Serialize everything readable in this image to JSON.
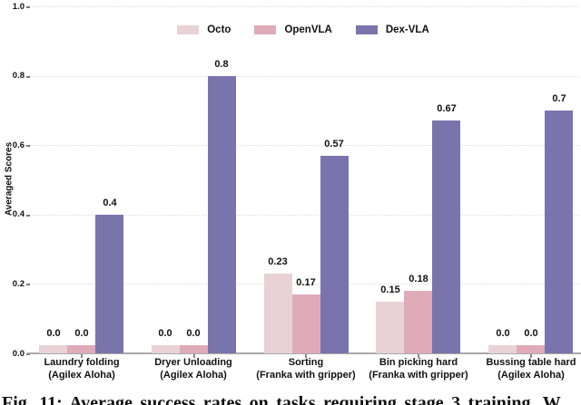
{
  "figure": {
    "caption": "Fig. 11: Average success rates on tasks requiring stage 3 training. W"
  },
  "chart_data": {
    "type": "bar",
    "title": "",
    "ylabel": "Averaged Scores",
    "xlabel": "",
    "ylim": [
      0.0,
      1.0
    ],
    "yticks": [
      0.0,
      0.2,
      0.4,
      0.6,
      0.8,
      1.0
    ],
    "grid": "horizontal-dotted",
    "legend_position": "top-center",
    "value_labels_shown": true,
    "categories": [
      {
        "line1": "Laundry folding",
        "line2": "(Agilex Aloha)"
      },
      {
        "line1": "Dryer Unloading",
        "line2": "(Agilex Aloha)"
      },
      {
        "line1": "Sorting",
        "line2": "(Franka with gripper)"
      },
      {
        "line1": "Bin picking hard",
        "line2": "(Franka with gripper)"
      },
      {
        "line1": "Bussing table hard",
        "line2": "(Agilex Aloha)"
      }
    ],
    "series": [
      {
        "name": "Octo",
        "color": "#e8d2d6",
        "values": [
          0.0,
          0.0,
          0.23,
          0.15,
          0.0
        ]
      },
      {
        "name": "OpenVLA",
        "color": "#dfabb9",
        "values": [
          0.0,
          0.0,
          0.17,
          0.18,
          0.0
        ]
      },
      {
        "name": "Dex-VLA",
        "color": "#7a74ad",
        "values": [
          0.4,
          0.8,
          0.57,
          0.67,
          0.7
        ]
      }
    ],
    "colors": {
      "gridline": "#dddcda",
      "axis_line": "#a9a9a9",
      "text": "#111111"
    }
  }
}
